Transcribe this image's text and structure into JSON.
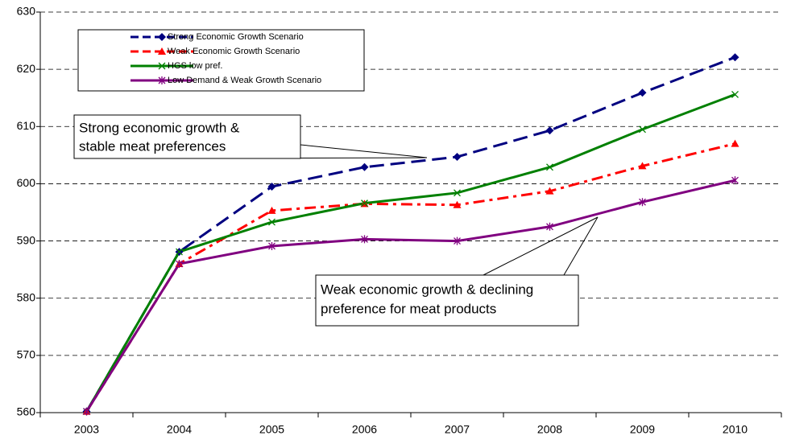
{
  "chart_data": {
    "type": "line",
    "categories": [
      "2003",
      "2004",
      "2005",
      "2006",
      "2007",
      "2008",
      "2009",
      "2010"
    ],
    "series": [
      {
        "name": "Strong Economic Growth Scenario",
        "color": "#000080",
        "marker": "diamond",
        "dash": "dashed",
        "values": [
          560.2,
          588.1,
          599.5,
          602.9,
          604.7,
          609.3,
          615.9,
          622.1
        ]
      },
      {
        "name": "Weak Economic Growth Scenario",
        "color": "#ff0000",
        "marker": "triangle",
        "dash": "dashdot",
        "values": [
          560.2,
          586.0,
          595.3,
          596.5,
          596.3,
          598.7,
          603.1,
          607.0
        ]
      },
      {
        "name": "HGS low pref.",
        "color": "#008000",
        "marker": "x",
        "dash": "solid",
        "values": [
          560.2,
          588.1,
          593.3,
          596.6,
          598.4,
          602.9,
          609.5,
          615.6
        ]
      },
      {
        "name": "Low Demand & Weak Growth Scenario",
        "color": "#800080",
        "marker": "star",
        "dash": "solid",
        "values": [
          560.2,
          586.0,
          589.1,
          590.3,
          590.0,
          592.5,
          596.8,
          600.6
        ]
      }
    ],
    "ylim": [
      560,
      630
    ],
    "yticks": [
      560,
      570,
      580,
      590,
      600,
      610,
      620,
      630
    ],
    "grid": true,
    "annotations": [
      {
        "lines": [
          "Strong economic growth &",
          "stable meat preferences"
        ]
      },
      {
        "lines": [
          "Weak economic growth & declining",
          "preference for meat products"
        ]
      }
    ]
  }
}
